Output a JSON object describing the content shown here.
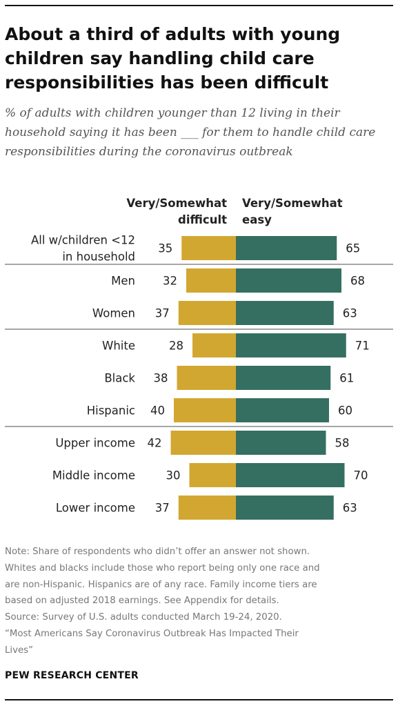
{
  "title": "About a third of adults with young children say handling child care responsibilities has been difficult",
  "subtitle": "% of adults with children younger than 12 living in their household saying it has been ___ for them to handle child care responsibilities during the coronavirus outbreak",
  "note_lines": [
    "Note: Share of respondents who didn’t offer an answer not shown.",
    "Whites and blacks include those who report being only one race and",
    "are non-Hispanic. Hispanics are of any race. Family income tiers are",
    "based on adjusted 2018 earnings. See Appendix for details.",
    "Source: Survey of U.S. adults conducted March 19-24, 2020.",
    "“Most Americans Say Coronavirus Outbreak Has Impacted Their",
    "Lives”"
  ],
  "footer": "PEW RESEARCH CENTER",
  "colors": {
    "difficult": "#d2a731",
    "easy": "#356f61",
    "separator": "#888888"
  },
  "chart_data": {
    "type": "bar",
    "orientation": "horizontal-diverging",
    "series": [
      {
        "name": "Very/Somewhat difficult",
        "name_lines": [
          "Very/Somewhat",
          "difficult"
        ],
        "values": [
          35,
          32,
          37,
          28,
          38,
          40,
          42,
          30,
          37
        ]
      },
      {
        "name": "Very/Somewhat easy",
        "name_lines": [
          "Very/Somewhat",
          "easy"
        ],
        "values": [
          65,
          68,
          63,
          71,
          61,
          60,
          58,
          70,
          63
        ]
      }
    ],
    "categories": [
      {
        "label_lines": [
          "All w/children <12",
          "in household"
        ]
      },
      {
        "label_lines": [
          "Men"
        ]
      },
      {
        "label_lines": [
          "Women"
        ]
      },
      {
        "label_lines": [
          "White"
        ]
      },
      {
        "label_lines": [
          "Black"
        ]
      },
      {
        "label_lines": [
          "Hispanic"
        ]
      },
      {
        "label_lines": [
          "Upper income"
        ]
      },
      {
        "label_lines": [
          "Middle income"
        ]
      },
      {
        "label_lines": [
          "Lower income"
        ]
      }
    ],
    "group_separators_after": [
      0,
      2,
      5
    ],
    "legend": "top"
  }
}
